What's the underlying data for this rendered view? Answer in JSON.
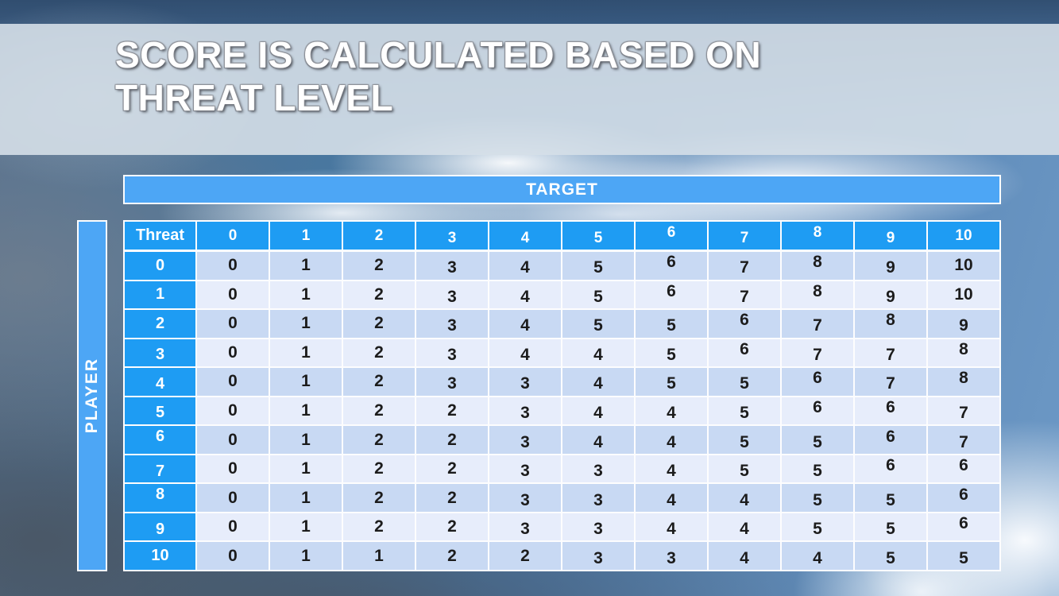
{
  "slide": {
    "title_line1": "SCORE IS CALCULATED BASED ON",
    "title_line2": "THREAT LEVEL"
  },
  "table": {
    "target_label": "TARGET",
    "player_label": "PLAYER",
    "corner_label": "Threat",
    "column_headers": [
      "0",
      "1",
      "2",
      "3",
      "4",
      "5",
      "6",
      "7",
      "8",
      "9",
      "10"
    ],
    "rows": [
      {
        "header": "0",
        "values": [
          0,
          1,
          2,
          3,
          4,
          5,
          6,
          7,
          8,
          9,
          10
        ]
      },
      {
        "header": "1",
        "values": [
          0,
          1,
          2,
          3,
          4,
          5,
          6,
          7,
          8,
          9,
          10
        ]
      },
      {
        "header": "2",
        "values": [
          0,
          1,
          2,
          3,
          4,
          5,
          5,
          6,
          7,
          8,
          9
        ]
      },
      {
        "header": "3",
        "values": [
          0,
          1,
          2,
          3,
          4,
          4,
          5,
          6,
          7,
          7,
          8
        ]
      },
      {
        "header": "4",
        "values": [
          0,
          1,
          2,
          3,
          3,
          4,
          5,
          5,
          6,
          7,
          8
        ]
      },
      {
        "header": "5",
        "values": [
          0,
          1,
          2,
          2,
          3,
          4,
          4,
          5,
          6,
          6,
          7
        ]
      },
      {
        "header": "6",
        "values": [
          0,
          1,
          2,
          2,
          3,
          4,
          4,
          5,
          5,
          6,
          7
        ]
      },
      {
        "header": "7",
        "values": [
          0,
          1,
          2,
          2,
          3,
          3,
          4,
          5,
          5,
          6,
          6
        ]
      },
      {
        "header": "8",
        "values": [
          0,
          1,
          2,
          2,
          3,
          3,
          4,
          4,
          5,
          5,
          6
        ]
      },
      {
        "header": "9",
        "values": [
          0,
          1,
          2,
          2,
          3,
          3,
          4,
          4,
          5,
          5,
          6
        ]
      },
      {
        "header": "10",
        "values": [
          0,
          1,
          1,
          2,
          2,
          3,
          3,
          4,
          4,
          5,
          5
        ]
      }
    ]
  },
  "colors": {
    "header_blue": "#1E9CF3",
    "bar_blue": "#4DA6F5",
    "row_dark": "#C8D9F3",
    "row_light": "#E7EDFB",
    "cell_text": "#1C1C1C",
    "title_text": "#FFFFFF"
  }
}
